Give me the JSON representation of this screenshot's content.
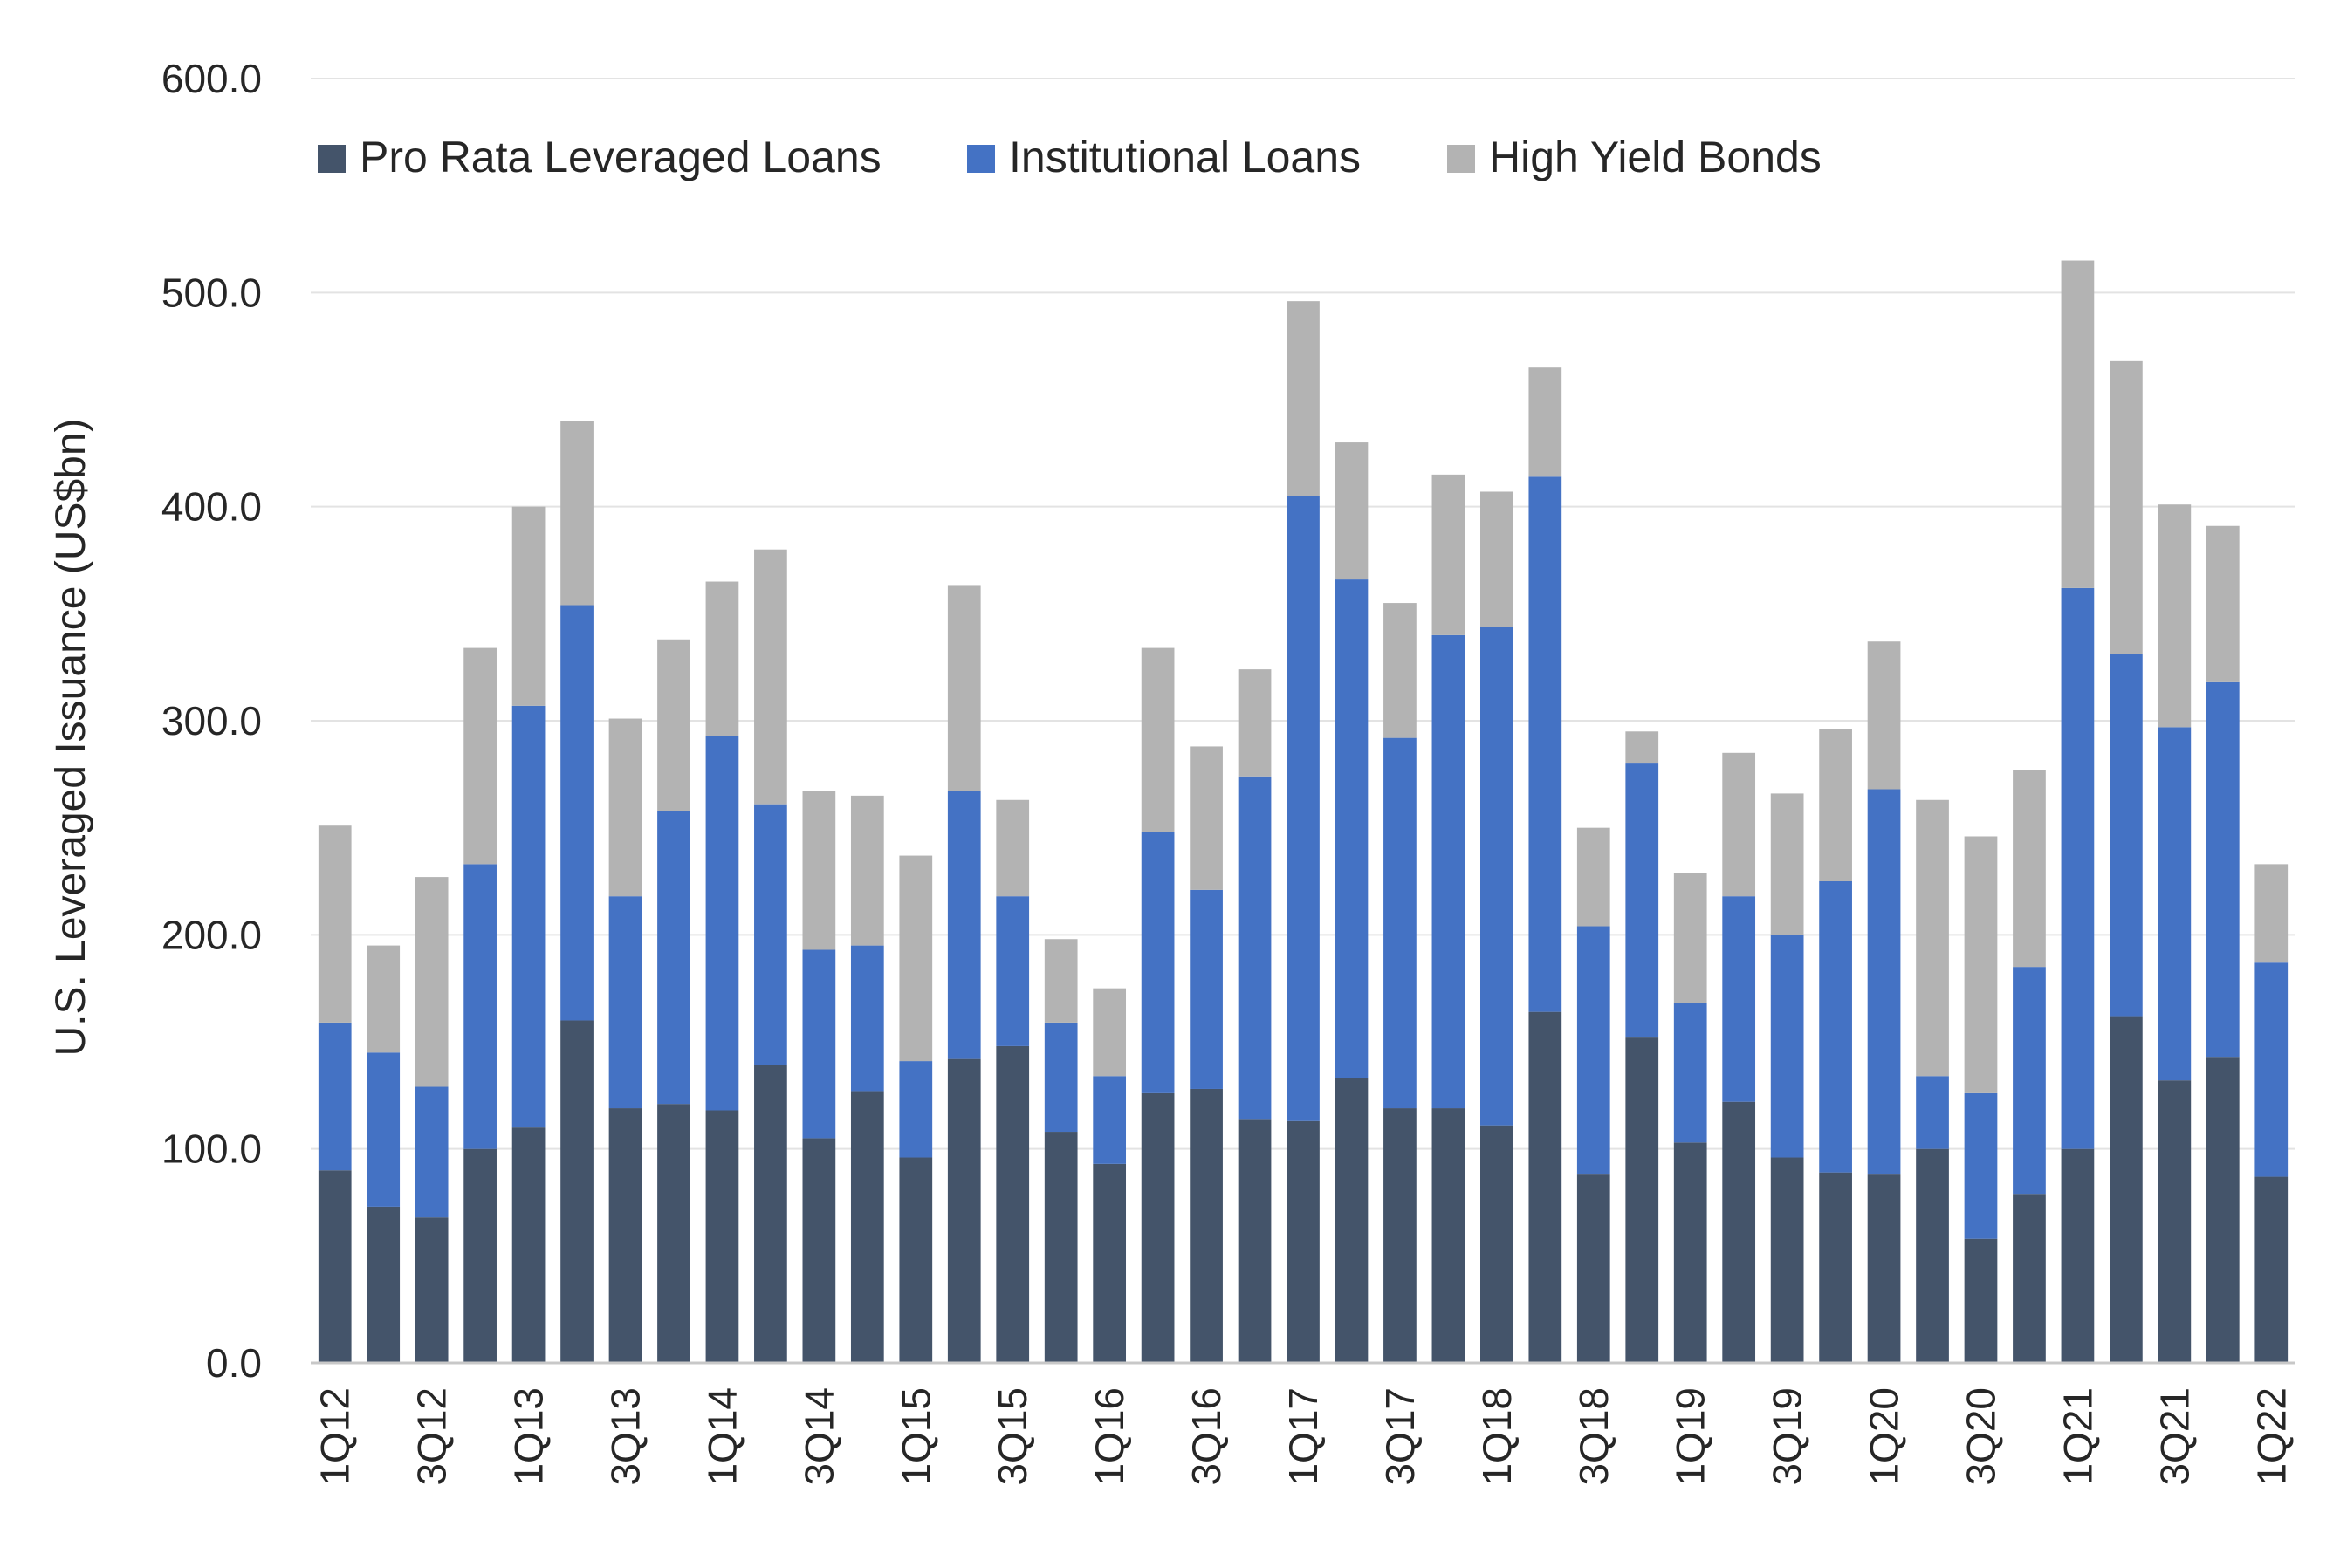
{
  "chart_data": {
    "type": "bar",
    "stacked": true,
    "ylabel": "U.S. Leveraged Issuance (US$bn)",
    "ylim": [
      0,
      600
    ],
    "yticks": [
      "0.0",
      "100.0",
      "200.0",
      "300.0",
      "400.0",
      "500.0",
      "600.0"
    ],
    "grid": true,
    "legend_position": "top-left",
    "categories": [
      "1Q12",
      "2Q12",
      "3Q12",
      "4Q12",
      "1Q13",
      "2Q13",
      "3Q13",
      "4Q13",
      "1Q14",
      "2Q14",
      "3Q14",
      "4Q14",
      "1Q15",
      "2Q15",
      "3Q15",
      "4Q15",
      "1Q16",
      "2Q16",
      "3Q16",
      "4Q16",
      "1Q17",
      "2Q17",
      "3Q17",
      "4Q17",
      "1Q18",
      "2Q18",
      "3Q18",
      "4Q18",
      "1Q19",
      "2Q19",
      "3Q19",
      "4Q19",
      "1Q20",
      "2Q20",
      "3Q20",
      "4Q20",
      "1Q21",
      "2Q21",
      "3Q21",
      "4Q21",
      "1Q22"
    ],
    "xtick_labels": [
      "1Q12",
      "",
      "3Q12",
      "",
      "1Q13",
      "",
      "3Q13",
      "",
      "1Q14",
      "",
      "3Q14",
      "",
      "1Q15",
      "",
      "3Q15",
      "",
      "1Q16",
      "",
      "3Q16",
      "",
      "1Q17",
      "",
      "3Q17",
      "",
      "1Q18",
      "",
      "3Q18",
      "",
      "1Q19",
      "",
      "3Q19",
      "",
      "1Q20",
      "",
      "3Q20",
      "",
      "1Q21",
      "",
      "3Q21",
      "",
      "1Q22"
    ],
    "series": [
      {
        "name": "Pro Rata Leveraged Loans",
        "color": "#44546A",
        "values": [
          90,
          73,
          68,
          100,
          110,
          160,
          119,
          121,
          118,
          139,
          105,
          127,
          96,
          142,
          148,
          108,
          93,
          126,
          128,
          114,
          113,
          133,
          119,
          119,
          111,
          164,
          88,
          152,
          103,
          122,
          96,
          89,
          88,
          100,
          58,
          79,
          100,
          162,
          132,
          143,
          87
        ]
      },
      {
        "name": "Institutional Loans",
        "color": "#4472C4",
        "values": [
          69,
          72,
          61,
          133,
          197,
          194,
          99,
          137,
          175,
          122,
          88,
          68,
          45,
          125,
          70,
          51,
          41,
          122,
          93,
          160,
          292,
          233,
          173,
          221,
          233,
          250,
          116,
          128,
          65,
          96,
          104,
          136,
          180,
          34,
          68,
          106,
          262,
          169,
          165,
          175,
          100
        ]
      },
      {
        "name": "High Yield Bonds",
        "color": "#B3B3B3",
        "values": [
          92,
          50,
          98,
          101,
          93,
          86,
          83,
          80,
          72,
          119,
          74,
          70,
          96,
          96,
          45,
          39,
          41,
          86,
          67,
          50,
          91,
          64,
          63,
          75,
          63,
          51,
          46,
          15,
          61,
          67,
          66,
          71,
          69,
          129,
          120,
          92,
          153,
          137,
          104,
          73,
          46
        ]
      }
    ]
  }
}
